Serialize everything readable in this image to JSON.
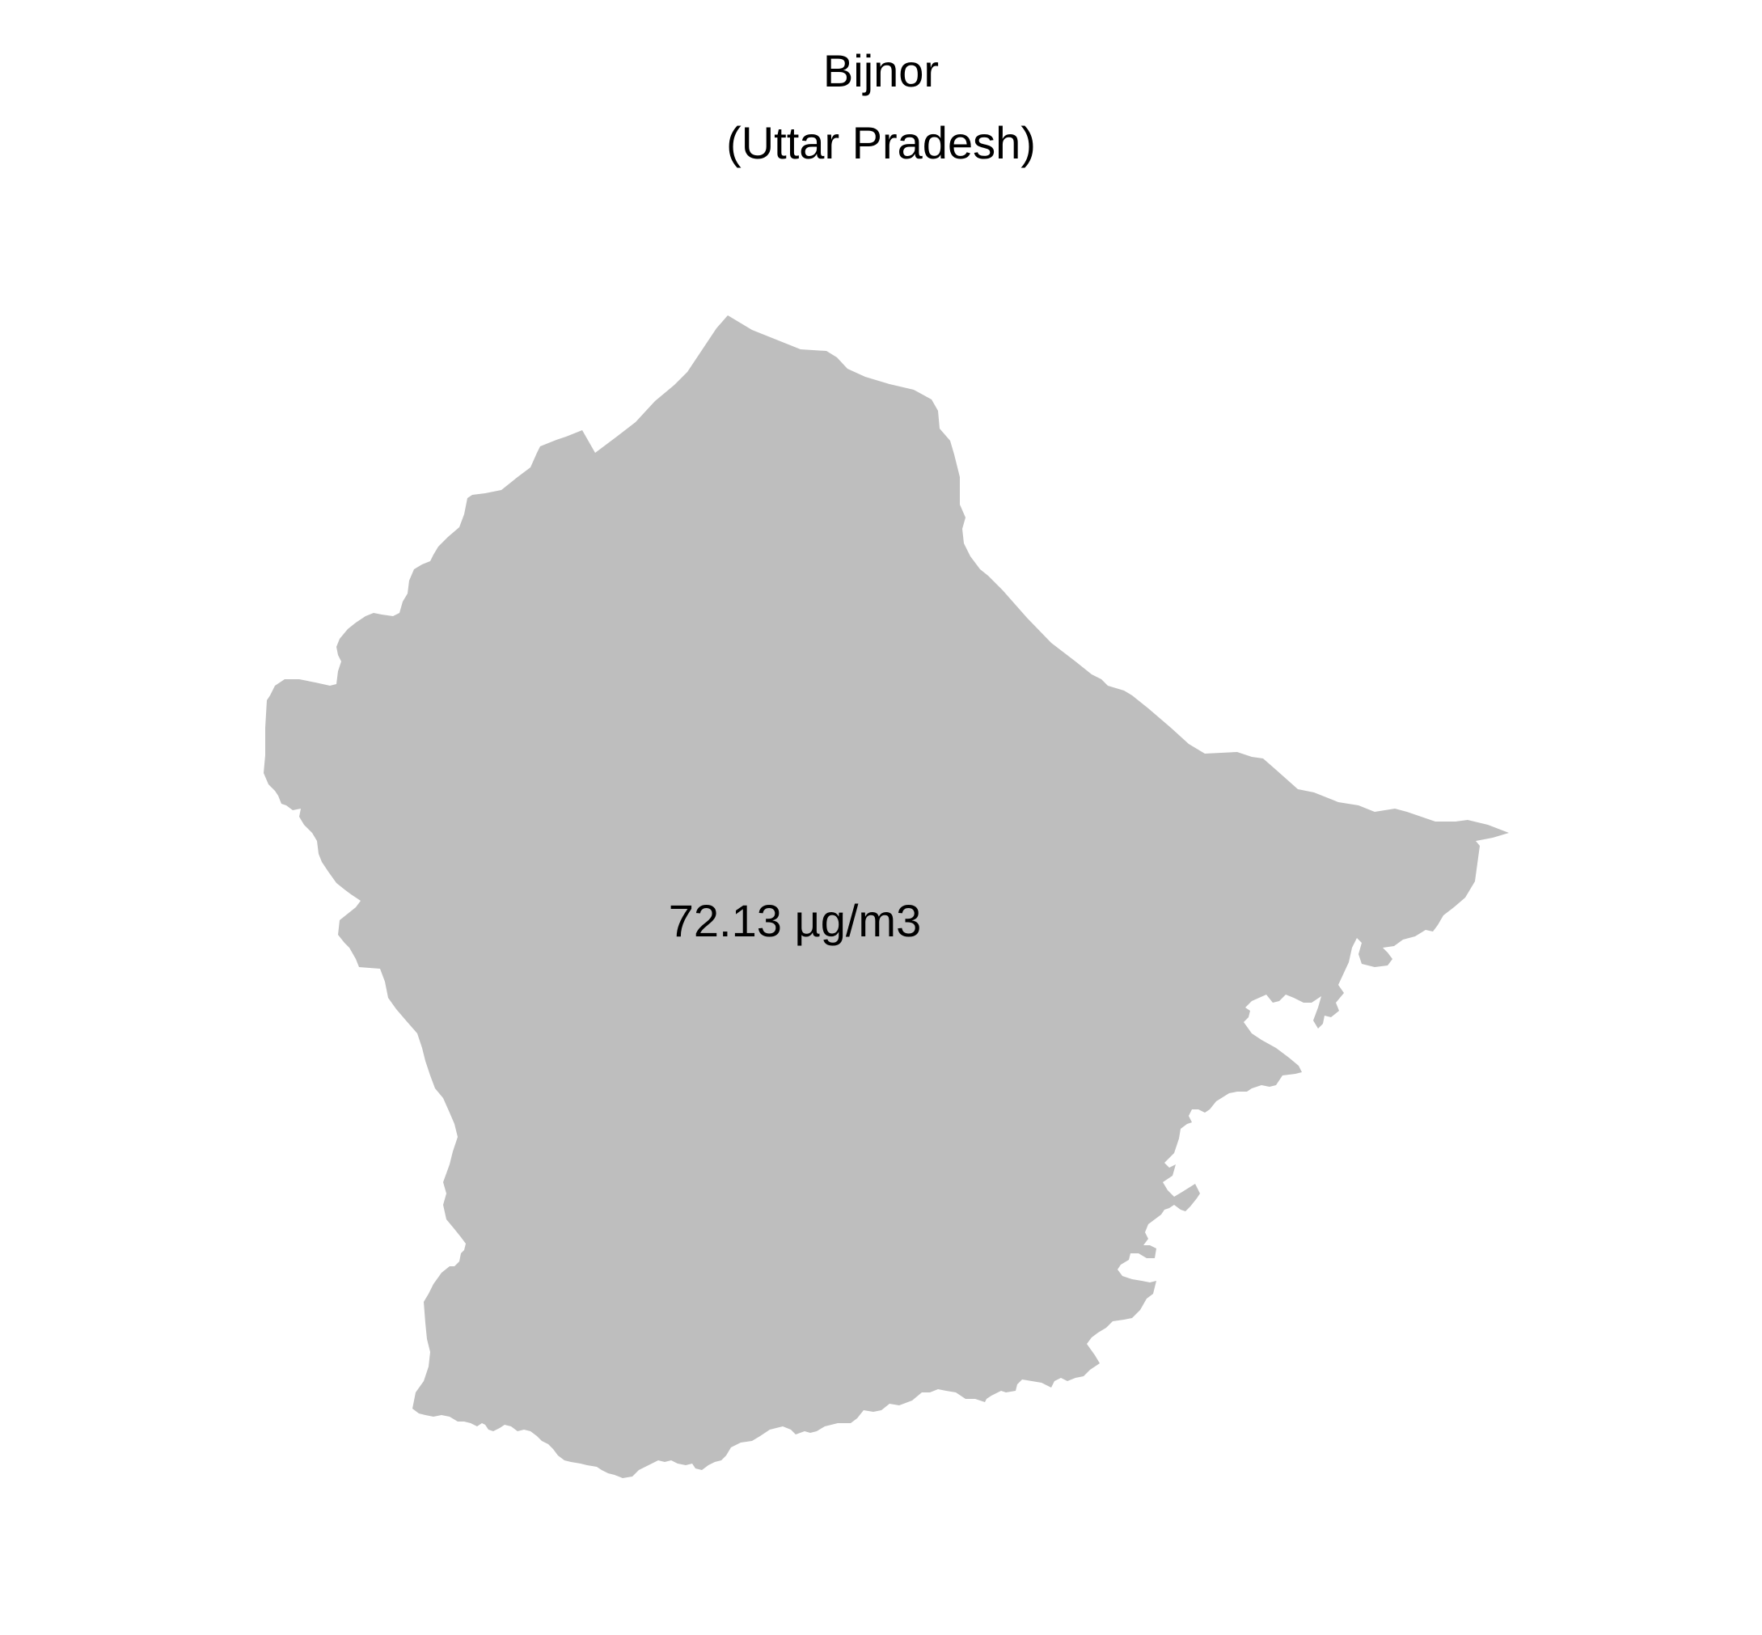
{
  "map": {
    "title": "Bijnor",
    "subtitle": "(Uttar Pradesh)",
    "value_label": "72.13 µg/m3",
    "value": 72.13,
    "unit": "µg/m3",
    "fill_color": "#bebebe",
    "background_color": "#ffffff"
  }
}
